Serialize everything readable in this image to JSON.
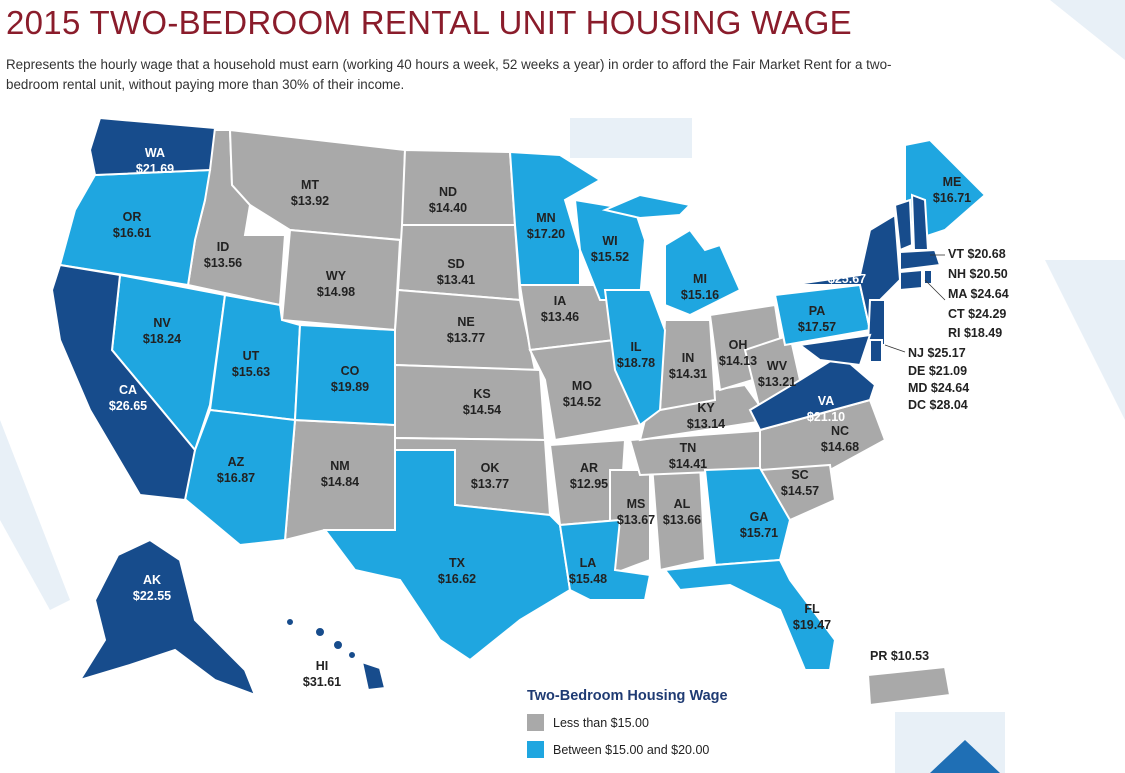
{
  "title": "2015 TWO-BEDROOM RENTAL UNIT HOUSING WAGE",
  "subtitle": "Represents the hourly wage that a household must earn (working 40 hours a week, 52 weeks a year) in order to afford the Fair Market Rent for a two-bedroom rental unit, without paying more than 30% of their income.",
  "colors": {
    "gray": "#a9a9a9",
    "light_blue": "#1fa6e0",
    "dark_blue": "#174c8c",
    "title": "#8a1c2b"
  },
  "states": {
    "WA": "$21.69",
    "OR": "$16.61",
    "CA": "$26.65",
    "NV": "$18.24",
    "ID": "$13.56",
    "MT": "$13.92",
    "WY": "$14.98",
    "UT": "$15.63",
    "AZ": "$16.87",
    "CO": "$19.89",
    "NM": "$14.84",
    "ND": "$14.40",
    "SD": "$13.41",
    "NE": "$13.77",
    "KS": "$14.54",
    "OK": "$13.77",
    "TX": "$16.62",
    "MN": "$17.20",
    "IA": "$13.46",
    "MO": "$14.52",
    "AR": "$12.95",
    "LA": "$15.48",
    "WI": "$15.52",
    "IL": "$18.78",
    "MS": "$13.67",
    "MI": "$15.16",
    "IN": "$14.31",
    "KY": "$13.14",
    "TN": "$14.41",
    "AL": "$13.66",
    "OH": "$14.13",
    "WV": "$13.21",
    "GA": "$15.71",
    "FL": "$19.47",
    "SC": "$14.57",
    "NC": "$14.68",
    "VA": "$21.10",
    "PA": "$17.57",
    "NY": "$25.67",
    "ME": "$16.71",
    "AK": "$22.55",
    "HI": "$31.61"
  },
  "side_labels": {
    "VT": "VT $20.68",
    "NH": "NH $20.50",
    "MA": "MA $24.64",
    "CT": "CT $24.29",
    "RI": "RI $18.49",
    "NJ": "NJ $25.17",
    "DE": "DE $21.09",
    "MD": "MD $24.64",
    "DC": "DC $28.04",
    "PR": "PR $10.53"
  },
  "legend": {
    "title": "Two-Bedroom Housing Wage",
    "items": [
      {
        "label": "Less than $15.00",
        "color": "#a9a9a9"
      },
      {
        "label": "Between $15.00 and $20.00",
        "color": "#1fa6e0"
      }
    ]
  }
}
